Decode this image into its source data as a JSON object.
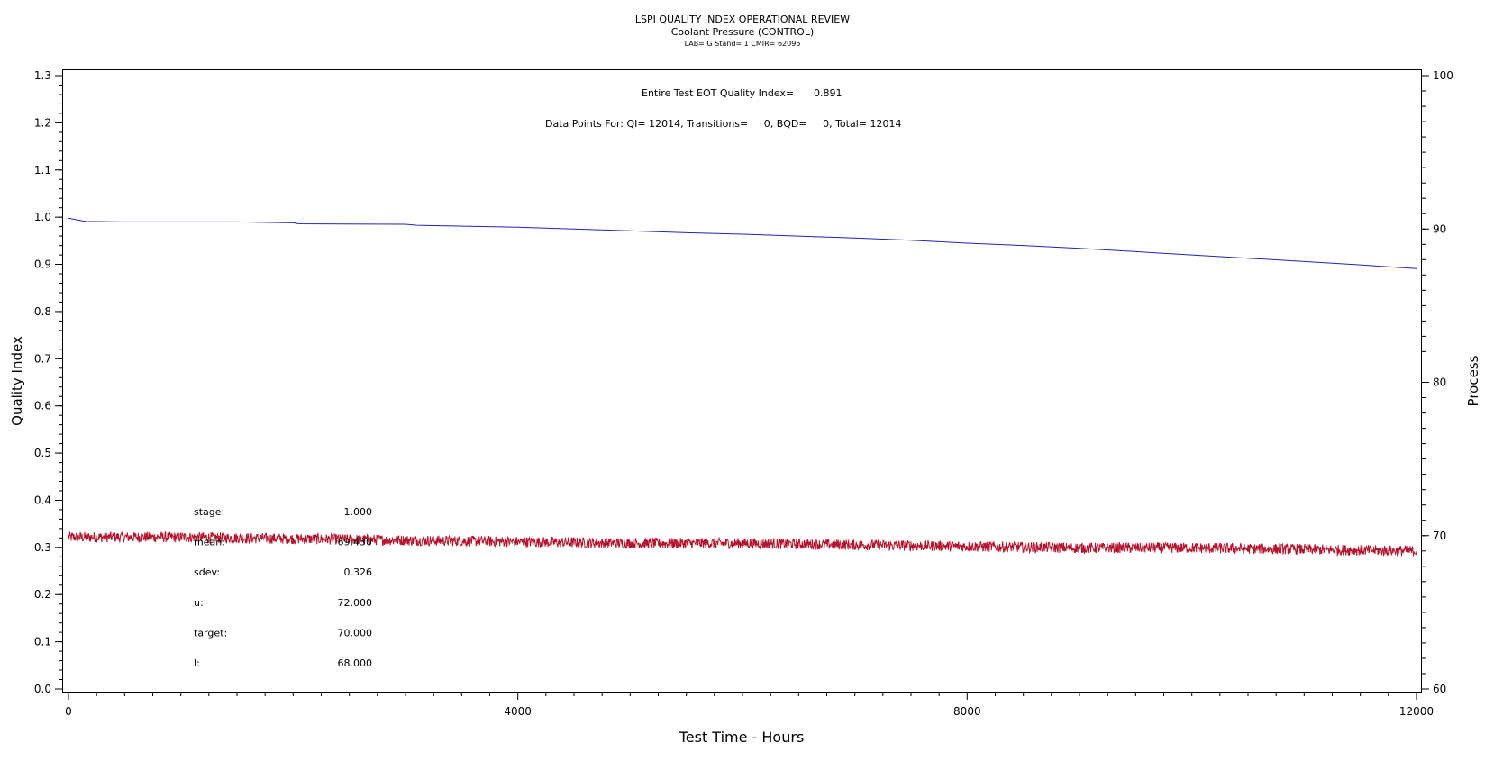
{
  "chart_data": {
    "type": "line",
    "title": "LSPI QUALITY INDEX OPERATIONAL REVIEW",
    "subtitle": "Coolant Pressure (CONTROL)",
    "subtitle2": "LAB= G Stand= 1 CMIR= 62095",
    "xlabel": "Test Time - Hours",
    "ylabel": "Quality Index",
    "y2label": "Process",
    "xlim": [
      0,
      12000
    ],
    "ylim": [
      0.0,
      1.3
    ],
    "y2lim": [
      60,
      100
    ],
    "xticks": [
      0,
      4000,
      8000,
      12000
    ],
    "yticks": [
      0.0,
      0.1,
      0.2,
      0.3,
      0.4,
      0.5,
      0.6,
      0.7,
      0.8,
      0.9,
      1.0,
      1.1,
      1.2,
      1.3
    ],
    "y2ticks": [
      60,
      70,
      80,
      90,
      100
    ],
    "annotations": {
      "eot_label": "Entire Test EOT Quality Index=",
      "eot_value": "0.891",
      "points_line": "Data Points For: QI= 12014, Transitions=     0, BQD=     0, Total= 12014"
    },
    "stats": [
      {
        "label": "stage:",
        "value": "1.000"
      },
      {
        "label": "mean:",
        "value": "69.430"
      },
      {
        "label": "sdev:",
        "value": "0.326"
      },
      {
        "label": "u:",
        "value": "72.000"
      },
      {
        "label": "target:",
        "value": "70.000"
      },
      {
        "label": "l:",
        "value": "68.000"
      }
    ],
    "series": [
      {
        "axis": "left",
        "color": "#2323b4",
        "x": [
          0,
          60,
          150,
          500,
          1500,
          2000,
          2050,
          3000,
          3100,
          4000,
          4500,
          5000,
          5500,
          6000,
          6500,
          7000,
          7500,
          8000,
          8500,
          9000,
          9500,
          10000,
          10500,
          11000,
          11500,
          12000
        ],
        "values": [
          0.998,
          0.995,
          0.991,
          0.99,
          0.99,
          0.988,
          0.986,
          0.985,
          0.983,
          0.979,
          0.975,
          0.971,
          0.967,
          0.964,
          0.96,
          0.956,
          0.951,
          0.945,
          0.94,
          0.934,
          0.927,
          0.92,
          0.913,
          0.906,
          0.899,
          0.891
        ]
      },
      {
        "axis": "right",
        "color": "#b4142d",
        "x": [
          0,
          1000,
          2000,
          3000,
          4000,
          5000,
          6000,
          7000,
          8000,
          9000,
          10000,
          11000,
          12000
        ],
        "values": [
          69.9,
          69.9,
          69.8,
          69.7,
          69.6,
          69.5,
          69.5,
          69.4,
          69.3,
          69.2,
          69.2,
          69.1,
          69.0
        ],
        "noise": 0.35
      }
    ]
  }
}
